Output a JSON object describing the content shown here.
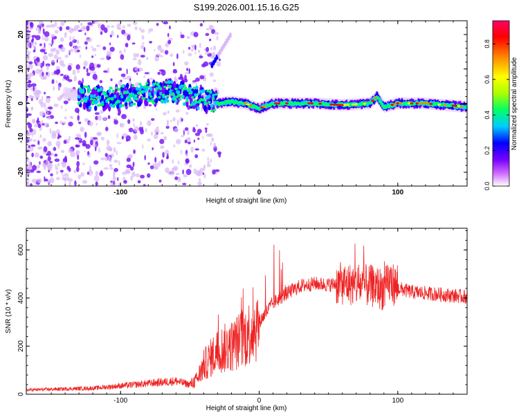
{
  "figure": {
    "title": "S199.2026.001.15.16.G25"
  },
  "chart_data": [
    {
      "type": "heatmap",
      "title": "S199.2026.001.15.16.G25",
      "xlabel": "Height of straight line (km)",
      "ylabel": "Frequency (Hz)",
      "xlim": [
        -168,
        150
      ],
      "ylim": [
        -24,
        24
      ],
      "xticks": [
        -100,
        0,
        100
      ],
      "yticks": [
        -20,
        -10,
        0,
        10,
        20
      ],
      "colorbar": {
        "label": "Normalized spectral amplitude",
        "range": [
          0,
          0.93
        ],
        "ticks": [
          "0.0",
          "0.2",
          "0.4",
          "0.6",
          "0.8"
        ],
        "tick_values": [
          0.0,
          0.2,
          0.4,
          0.6,
          0.8
        ],
        "colors": [
          "#ffffff",
          "#cc66ff",
          "#7700ff",
          "#0000ff",
          "#00ccff",
          "#00ff66",
          "#aaff00",
          "#ffff00",
          "#ff8800",
          "#ff0000",
          "#ff0066"
        ]
      },
      "trace": {
        "x": [
          -168,
          -140,
          -120,
          -100,
          -80,
          -60,
          -40,
          -30,
          -20,
          -10,
          0,
          10,
          20,
          40,
          60,
          80,
          85,
          90,
          100,
          120,
          150
        ],
        "frequency": [
          2,
          3,
          1.5,
          2,
          3,
          3.5,
          1,
          0,
          0.5,
          0,
          -1.5,
          0,
          0,
          0,
          -0.5,
          0,
          2,
          -1,
          0,
          0,
          -1
        ]
      }
    },
    {
      "type": "line",
      "xlabel": "Height of straight line (km)",
      "ylabel": "SNR (10 * v/v)",
      "xlim": [
        -168,
        150
      ],
      "ylim": [
        0,
        690
      ],
      "xticks": [
        -100,
        0,
        100
      ],
      "yticks": [
        0,
        200,
        400,
        600
      ],
      "series": [
        {
          "name": "SNR",
          "color": "#ee2222",
          "envelope_x": [
            -168,
            -120,
            -100,
            -80,
            -60,
            -50,
            -45,
            -40,
            -30,
            -20,
            -10,
            0,
            10,
            20,
            30,
            40,
            50,
            60,
            70,
            80,
            85,
            90,
            95,
            100,
            110,
            120,
            130,
            140,
            150
          ],
          "envelope_y": [
            18,
            25,
            35,
            45,
            55,
            40,
            60,
            120,
            180,
            200,
            240,
            300,
            380,
            420,
            450,
            460,
            455,
            460,
            455,
            450,
            445,
            435,
            470,
            440,
            425,
            420,
            415,
            410,
            405
          ]
        }
      ]
    }
  ]
}
